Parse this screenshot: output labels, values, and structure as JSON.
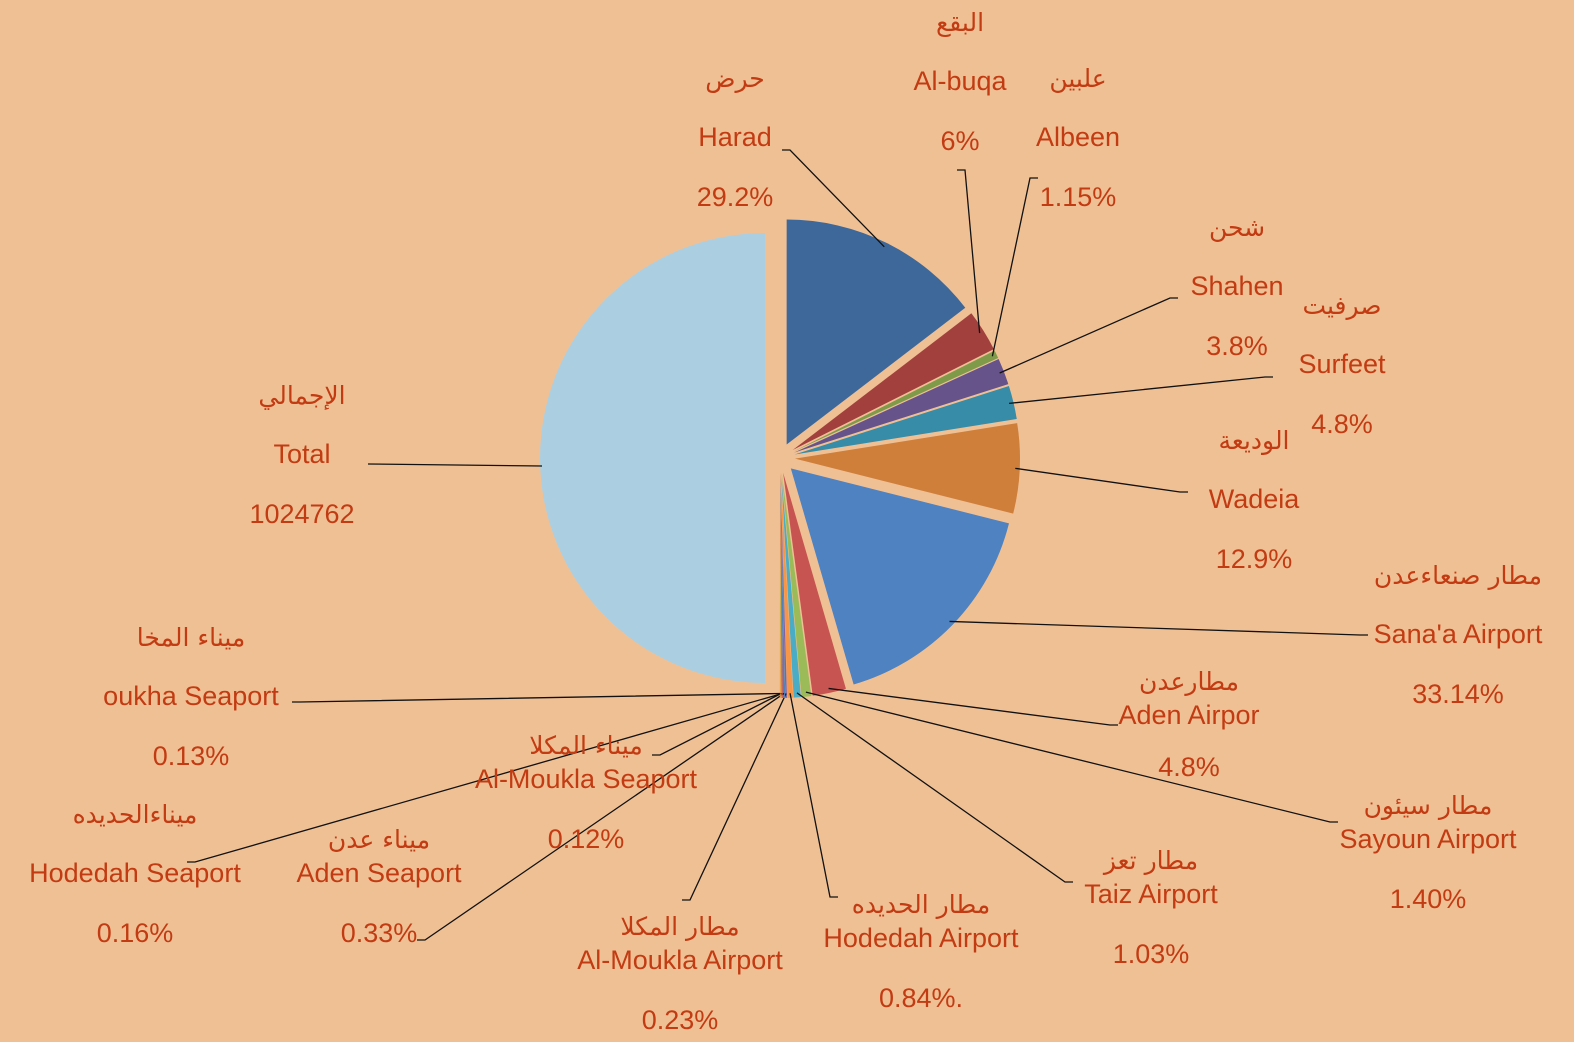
{
  "chart_data": {
    "type": "pie",
    "total": {
      "arabic": "الإجمالي",
      "name": "Total",
      "value": 1024762,
      "color": "#abcfe0"
    },
    "categories": [
      "Harad",
      "Al-buqa",
      "Albeen",
      "Shahen",
      "Surfeet",
      "Wadeia",
      "Sana'a Airport",
      "Aden Airpor",
      "Sayoun Airport",
      "Taiz Airport",
      "Hodedah Airport",
      "Al-Moukla Airport",
      "Aden Seaport",
      "Hodedah Seaport",
      "Al-Moukla Seaport",
      "oukha Seaport"
    ],
    "arabic_names": [
      "حرض",
      "البقع",
      "علبين",
      "شحن",
      "صرفيت",
      "الوديعة",
      "مطار صنعاءعدن",
      "مطارعدن",
      "مطار سيئون",
      "مطار تعز",
      "مطار الحديده",
      "مطار المكلا",
      "ميناء عدن",
      "ميناءالحديده",
      "ميناء المكلا",
      "ميناء المخا"
    ],
    "values": [
      29.2,
      6,
      1.15,
      3.8,
      4.8,
      12.9,
      33.14,
      4.8,
      1.4,
      1.03,
      0.84,
      0.23,
      0.33,
      0.16,
      0.12,
      0.13
    ],
    "value_labels": [
      "29.2%",
      "6%",
      "1.15%",
      "3.8%",
      "4.8%",
      "12.9%",
      "33.14%",
      "4.8%",
      "1.40%",
      "1.03%",
      "0.84%.",
      "0.23%",
      "0.33%",
      "0.16%",
      "0.12%",
      "0.13%"
    ],
    "colors": [
      "#3e6899",
      "#a2403e",
      "#7f9a48",
      "#66538a",
      "#378ca8",
      "#cf7f3a",
      "#4f82c0",
      "#c75451",
      "#9bbb59",
      "#4bacc6",
      "#f79646",
      "#8064a2",
      "#4f81bd",
      "#c0504d",
      "#9bbb59",
      "#f79646"
    ]
  }
}
